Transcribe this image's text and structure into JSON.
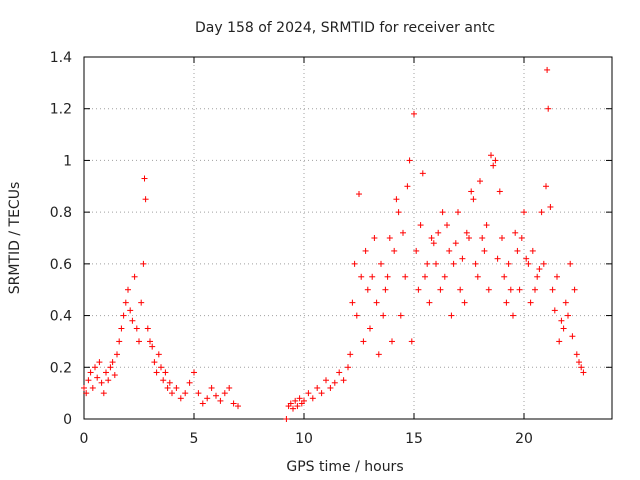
{
  "chart_data": {
    "type": "scatter",
    "title": "Day 158 of 2024, SRMTID for receiver antc",
    "xlabel": "GPS time / hours",
    "ylabel": "SRMTID / TECUs",
    "xlim": [
      0,
      24
    ],
    "ylim": [
      0,
      1.4
    ],
    "x_ticks": [
      0,
      5,
      10,
      15,
      20
    ],
    "x_tick_labels": [
      "0",
      "5",
      "10",
      "15",
      "20"
    ],
    "y_ticks": [
      0,
      0.2,
      0.4,
      0.6,
      0.8,
      1,
      1.2,
      1.4
    ],
    "y_tick_labels": [
      "0",
      "0.2",
      "0.4",
      "0.6",
      "0.8",
      "1",
      "1.2",
      "1.4"
    ],
    "grid": true,
    "marker": "+",
    "series": [
      {
        "name": "SRMTID",
        "color": "#ff0000",
        "x": [
          0.0,
          0.1,
          0.2,
          0.3,
          0.4,
          0.5,
          0.6,
          0.7,
          0.8,
          0.9,
          1.0,
          1.1,
          1.2,
          1.3,
          1.4,
          1.5,
          1.6,
          1.7,
          1.8,
          1.9,
          2.0,
          2.1,
          2.2,
          2.3,
          2.4,
          2.5,
          2.6,
          2.7,
          2.75,
          2.8,
          2.9,
          3.0,
          3.1,
          3.2,
          3.3,
          3.4,
          3.5,
          3.6,
          3.7,
          3.8,
          3.9,
          4.0,
          4.2,
          4.4,
          4.6,
          4.8,
          5.0,
          5.2,
          5.4,
          5.6,
          5.8,
          6.0,
          6.2,
          6.4,
          6.6,
          6.8,
          7.0,
          9.2,
          9.3,
          9.4,
          9.5,
          9.6,
          9.7,
          9.8,
          9.9,
          10.0,
          10.2,
          10.4,
          10.6,
          10.8,
          11.0,
          11.2,
          11.4,
          11.6,
          11.8,
          12.0,
          12.1,
          12.2,
          12.3,
          12.4,
          12.5,
          12.6,
          12.7,
          12.8,
          12.9,
          13.0,
          13.1,
          13.2,
          13.3,
          13.4,
          13.5,
          13.6,
          13.7,
          13.8,
          13.9,
          14.0,
          14.1,
          14.2,
          14.3,
          14.4,
          14.5,
          14.6,
          14.7,
          14.8,
          14.9,
          15.0,
          15.1,
          15.2,
          15.3,
          15.4,
          15.5,
          15.6,
          15.7,
          15.8,
          15.9,
          16.0,
          16.1,
          16.2,
          16.3,
          16.4,
          16.5,
          16.6,
          16.7,
          16.8,
          16.9,
          17.0,
          17.1,
          17.2,
          17.3,
          17.4,
          17.5,
          17.6,
          17.7,
          17.8,
          17.9,
          18.0,
          18.1,
          18.2,
          18.3,
          18.4,
          18.5,
          18.6,
          18.7,
          18.8,
          18.9,
          19.0,
          19.1,
          19.2,
          19.3,
          19.4,
          19.5,
          19.6,
          19.7,
          19.8,
          19.9,
          20.0,
          20.1,
          20.2,
          20.3,
          20.4,
          20.5,
          20.6,
          20.7,
          20.8,
          20.9,
          21.0,
          21.05,
          21.1,
          21.2,
          21.3,
          21.4,
          21.5,
          21.6,
          21.7,
          21.8,
          21.9,
          22.0,
          22.1,
          22.2,
          22.3,
          22.4,
          22.5,
          22.6,
          22.7
        ],
        "y": [
          0.12,
          0.1,
          0.15,
          0.18,
          0.12,
          0.2,
          0.16,
          0.22,
          0.14,
          0.1,
          0.18,
          0.15,
          0.2,
          0.22,
          0.17,
          0.25,
          0.3,
          0.35,
          0.4,
          0.45,
          0.5,
          0.42,
          0.38,
          0.55,
          0.35,
          0.3,
          0.45,
          0.6,
          0.93,
          0.85,
          0.35,
          0.3,
          0.28,
          0.22,
          0.18,
          0.25,
          0.2,
          0.15,
          0.18,
          0.12,
          0.14,
          0.1,
          0.12,
          0.08,
          0.1,
          0.14,
          0.18,
          0.1,
          0.06,
          0.08,
          0.12,
          0.09,
          0.07,
          0.1,
          0.12,
          0.06,
          0.05,
          0.0,
          0.05,
          0.06,
          0.04,
          0.07,
          0.05,
          0.08,
          0.06,
          0.07,
          0.1,
          0.08,
          0.12,
          0.1,
          0.15,
          0.12,
          0.14,
          0.18,
          0.15,
          0.2,
          0.25,
          0.45,
          0.6,
          0.4,
          0.87,
          0.55,
          0.3,
          0.65,
          0.5,
          0.35,
          0.55,
          0.7,
          0.45,
          0.25,
          0.6,
          0.4,
          0.5,
          0.55,
          0.7,
          0.3,
          0.65,
          0.85,
          0.8,
          0.4,
          0.72,
          0.55,
          0.9,
          1.0,
          0.3,
          1.18,
          0.65,
          0.5,
          0.75,
          0.95,
          0.55,
          0.6,
          0.45,
          0.7,
          0.68,
          0.6,
          0.72,
          0.5,
          0.8,
          0.55,
          0.75,
          0.65,
          0.4,
          0.6,
          0.68,
          0.8,
          0.5,
          0.62,
          0.45,
          0.72,
          0.7,
          0.88,
          0.85,
          0.6,
          0.55,
          0.92,
          0.7,
          0.65,
          0.75,
          0.5,
          1.02,
          0.98,
          1.0,
          0.62,
          0.88,
          0.7,
          0.55,
          0.45,
          0.6,
          0.5,
          0.4,
          0.72,
          0.65,
          0.5,
          0.7,
          0.8,
          0.62,
          0.6,
          0.45,
          0.65,
          0.5,
          0.55,
          0.58,
          0.8,
          0.6,
          0.9,
          1.35,
          1.2,
          0.82,
          0.5,
          0.42,
          0.55,
          0.3,
          0.38,
          0.35,
          0.45,
          0.4,
          0.6,
          0.32,
          0.5,
          0.25,
          0.22,
          0.2,
          0.18
        ]
      }
    ]
  }
}
